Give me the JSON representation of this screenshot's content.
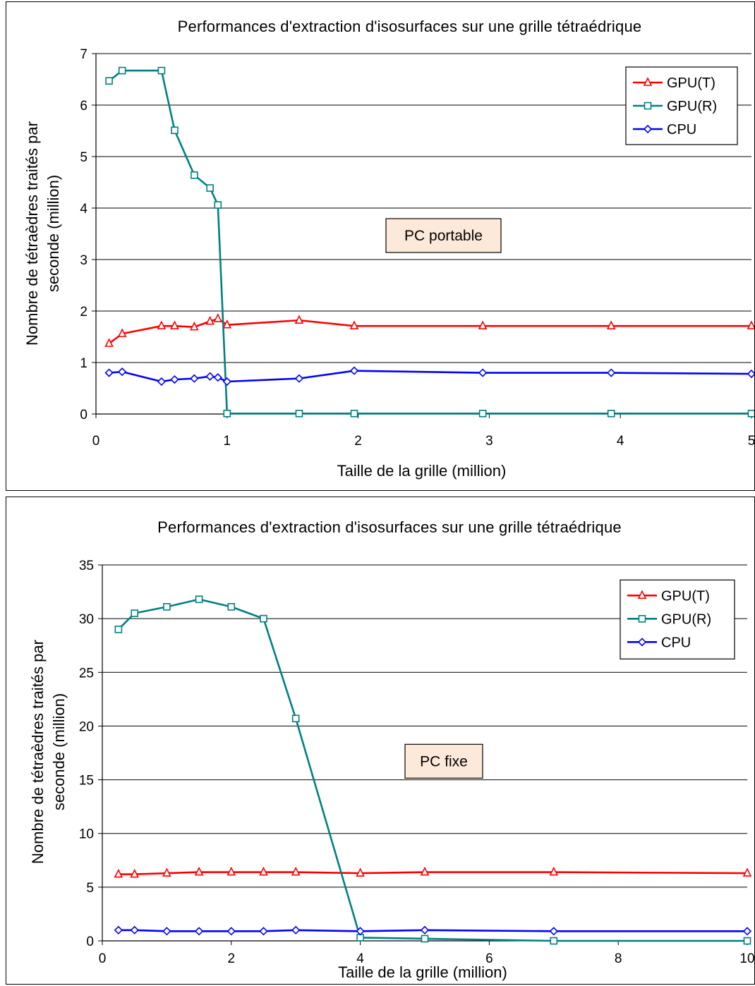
{
  "chart_data": [
    {
      "type": "line",
      "title": "Performances  d'extraction d'isosurfaces sur une grille tétraédrique",
      "xlabel": "Taille de la grille (million)",
      "ylabel": [
        "Nombre de tétraèdres traités par",
        "seconde (million)"
      ],
      "xlim": [
        0,
        5
      ],
      "ylim": [
        0,
        7
      ],
      "xticks": [
        0,
        1,
        2,
        3,
        4,
        5
      ],
      "yticks": [
        0,
        1,
        2,
        3,
        4,
        5,
        6,
        7
      ],
      "grid": "horizontal",
      "legend_position": "top-right",
      "annotation": "PC portable",
      "series": [
        {
          "name": "GPU(T)",
          "color": "#ff0000",
          "marker": "triangle",
          "x": [
            0.1,
            0.2,
            0.5,
            0.6,
            0.75,
            0.87,
            0.93,
            1.0,
            1.55,
            1.97,
            2.95,
            3.93,
            5.0
          ],
          "y": [
            1.37,
            1.56,
            1.71,
            1.71,
            1.69,
            1.8,
            1.85,
            1.73,
            1.82,
            1.71,
            1.71,
            1.71,
            1.71
          ]
        },
        {
          "name": "GPU(R)",
          "color": "#008080",
          "marker": "square",
          "x": [
            0.1,
            0.2,
            0.5,
            0.6,
            0.75,
            0.87,
            0.93,
            1.0,
            1.55,
            1.97,
            2.95,
            3.93,
            5.0
          ],
          "y": [
            6.47,
            6.67,
            6.67,
            5.51,
            4.64,
            4.39,
            4.06,
            0.01,
            0.01,
            0.01,
            0.01,
            0.01,
            0.01
          ]
        },
        {
          "name": "CPU",
          "color": "#0000ff",
          "marker": "diamond",
          "x": [
            0.1,
            0.2,
            0.5,
            0.6,
            0.75,
            0.87,
            0.93,
            1.0,
            1.55,
            1.97,
            2.95,
            3.93,
            5.0
          ],
          "y": [
            0.8,
            0.82,
            0.63,
            0.67,
            0.69,
            0.73,
            0.71,
            0.63,
            0.69,
            0.84,
            0.8,
            0.8,
            0.78
          ]
        }
      ]
    },
    {
      "type": "line",
      "title": "Performances  d'extraction d'isosurfaces sur une grille tétraédrique",
      "xlabel": "Taille de la grille (million)",
      "ylabel": [
        "Nombre de tétraèdres traités par",
        "seconde (million)"
      ],
      "xlim": [
        0,
        10
      ],
      "ylim": [
        0,
        35
      ],
      "xticks": [
        0,
        2,
        4,
        6,
        8,
        10
      ],
      "yticks": [
        0,
        5,
        10,
        15,
        20,
        25,
        30,
        35
      ],
      "grid": "horizontal",
      "legend_position": "top-right",
      "annotation": "PC fixe",
      "series": [
        {
          "name": "GPU(T)",
          "color": "#ff0000",
          "marker": "triangle",
          "x": [
            0.25,
            0.5,
            1.0,
            1.5,
            2.0,
            2.5,
            3.0,
            4.0,
            5.0,
            7.0,
            10.0
          ],
          "y": [
            6.2,
            6.2,
            6.3,
            6.4,
            6.4,
            6.4,
            6.4,
            6.3,
            6.4,
            6.4,
            6.3
          ]
        },
        {
          "name": "GPU(R)",
          "color": "#008080",
          "marker": "square",
          "x": [
            0.25,
            0.5,
            1.0,
            1.5,
            2.0,
            2.5,
            3.0,
            4.0,
            5.0,
            7.0,
            10.0
          ],
          "y": [
            29.0,
            30.5,
            31.1,
            31.8,
            31.1,
            30.0,
            20.7,
            0.3,
            0.2,
            0.0,
            0.0
          ]
        },
        {
          "name": "CPU",
          "color": "#0000ff",
          "marker": "diamond",
          "x": [
            0.25,
            0.5,
            1.0,
            1.5,
            2.0,
            2.5,
            3.0,
            4.0,
            5.0,
            7.0,
            10.0
          ],
          "y": [
            1.0,
            1.0,
            0.9,
            0.9,
            0.9,
            0.9,
            1.0,
            0.9,
            1.0,
            0.9,
            0.9
          ]
        }
      ]
    }
  ]
}
